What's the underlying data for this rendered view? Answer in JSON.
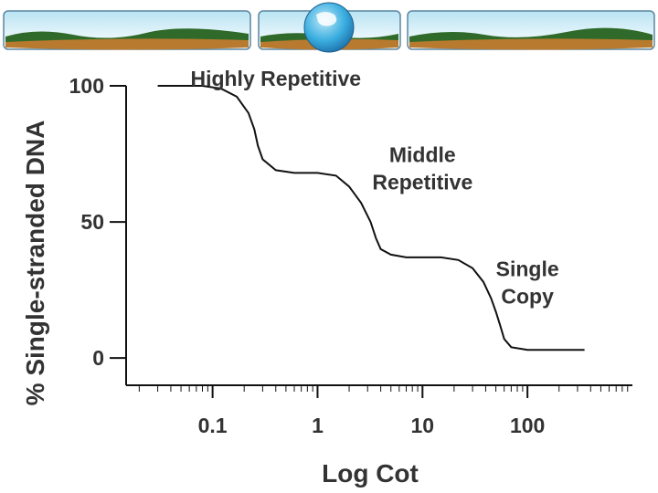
{
  "chart_data": {
    "type": "line",
    "title": "",
    "xlabel": "Log Cot",
    "ylabel": "% Single-stranded DNA",
    "x_scale": "log",
    "xlim": [
      0.015,
      1000
    ],
    "ylim": [
      -10,
      100
    ],
    "x_ticks": [
      0.1,
      1,
      10,
      100
    ],
    "x_tick_labels": [
      "0.1",
      "1",
      "10",
      "100"
    ],
    "y_ticks": [
      0,
      50,
      100
    ],
    "y_tick_labels": [
      "0",
      "50",
      "100"
    ],
    "grid": false,
    "series": [
      {
        "x": [
          0.03,
          0.08,
          0.12,
          0.17,
          0.22,
          0.25,
          0.27,
          0.3,
          0.4,
          0.6,
          1.0,
          1.5,
          2.0,
          2.6,
          3.2,
          3.6,
          4.0,
          5.0,
          7.0,
          10,
          15,
          22,
          30,
          38,
          45,
          50,
          55,
          60,
          70,
          100,
          200,
          350
        ],
        "y": [
          100,
          100,
          99,
          96,
          90,
          84,
          78,
          73,
          69,
          68,
          68,
          67,
          63,
          57,
          50,
          44,
          40,
          38,
          37,
          37,
          37,
          36,
          33,
          28,
          22,
          17,
          12,
          7,
          4,
          3,
          3,
          3
        ]
      }
    ],
    "annotations": [
      {
        "lines": [
          "Highly Repetitive"
        ],
        "x": 0.4,
        "y": 100
      },
      {
        "lines": [
          "Middle",
          "Repetitive"
        ],
        "x": 10,
        "y": 72
      },
      {
        "lines": [
          "Single",
          "Copy"
        ],
        "x": 100,
        "y": 30
      }
    ],
    "colors": {
      "line": "#111111",
      "axis": "#111111",
      "text": "#333333"
    }
  },
  "banner": {
    "colors": {
      "sky": "#dff3fb",
      "sky_light": "#ffffff",
      "earth": "#b87a2e",
      "hills": "#2f6a2a",
      "globe": "#3aaee0"
    }
  }
}
